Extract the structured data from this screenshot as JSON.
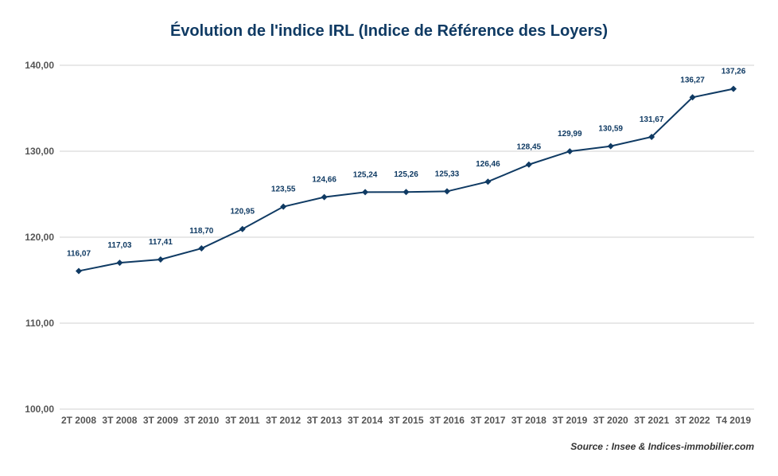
{
  "chart_data": {
    "type": "line",
    "title": "Évolution de l'indice IRL (Indice de Référence des Loyers)",
    "categories": [
      "2T 2008",
      "3T 2008",
      "3T 2009",
      "3T 2010",
      "3T 2011",
      "3T 2012",
      "3T 2013",
      "3T 2014",
      "3T 2015",
      "3T 2016",
      "3T 2017",
      "3T 2018",
      "3T 2019",
      "3T 2020",
      "3T 2021",
      "3T 2022",
      "T4 2019"
    ],
    "series": [
      {
        "values": [
          116.07,
          117.03,
          117.41,
          118.7,
          120.95,
          123.55,
          124.66,
          125.24,
          125.26,
          125.33,
          126.46,
          128.45,
          129.99,
          130.59,
          131.67,
          136.27,
          137.26
        ],
        "data_labels": [
          "116,07",
          "117,03",
          "117,41",
          "118,70",
          "120,95",
          "123,55",
          "124,66",
          "125,24",
          "125,26",
          "125,33",
          "126,46",
          "128,45",
          "129,99",
          "130,59",
          "131,67",
          "136,27",
          "137,26"
        ],
        "color": "#0f3a63"
      }
    ],
    "ylim": [
      100,
      140
    ],
    "yticks": [
      100,
      110,
      120,
      130,
      140
    ],
    "ytick_labels": [
      "100,00",
      "110,00",
      "120,00",
      "130,00",
      "140,00"
    ],
    "grid": true,
    "source": "Source : Insee & Indices-immobilier.com"
  }
}
